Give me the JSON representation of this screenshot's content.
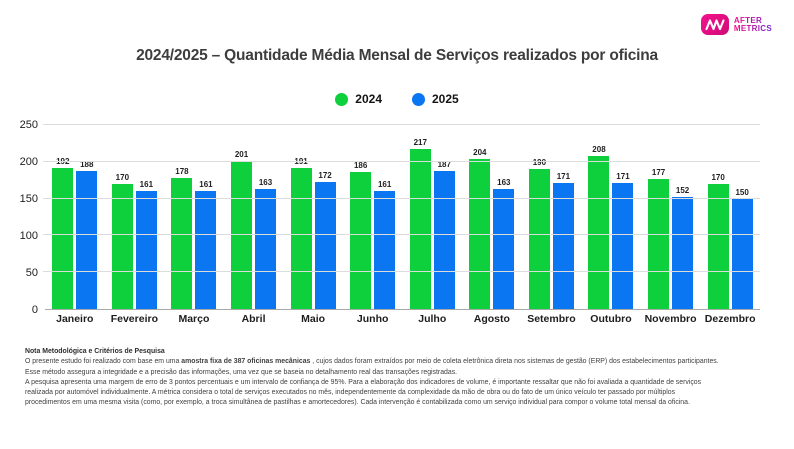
{
  "header": {
    "logo": {
      "brand_line1": "AFTER",
      "brand_line2": "METRICS"
    },
    "title": "2024/2025 – Quantidade Média Mensal de Serviços realizados por oficina"
  },
  "chart_data": {
    "type": "bar",
    "title": "2024/2025 – Quantidade Média Mensal de Serviços realizados por oficina",
    "categories": [
      "Janeiro",
      "Fevereiro",
      "Março",
      "Abril",
      "Maio",
      "Junho",
      "Julho",
      "Agosto",
      "Setembro",
      "Outubro",
      "Novembro",
      "Dezembro"
    ],
    "series": [
      {
        "name": "2024",
        "color": "#0ed03c",
        "values": [
          192,
          170,
          178,
          201,
          191,
          186,
          217,
          204,
          190,
          208,
          177,
          170
        ]
      },
      {
        "name": "2025",
        "color": "#0b76f2",
        "values": [
          188,
          161,
          161,
          163,
          172,
          161,
          187,
          163,
          171,
          171,
          152,
          150
        ]
      }
    ],
    "xlabel": "",
    "ylabel": "",
    "ylim": [
      0,
      250
    ],
    "yticks": [
      0,
      50,
      100,
      150,
      200,
      250
    ],
    "grid": true,
    "legend_position": "top",
    "bar_value_labels": true
  },
  "footnote": {
    "heading": "Nota Metodológica e Critérios de Pesquisa",
    "line1_prefix": "O presente estudo foi realizado com base em uma ",
    "line1_bold": "amostra fixa de 387 oficinas mecânicas",
    "line1_suffix": " , cujos dados foram extraídos por meio de coleta eletrônica direta nos sistemas de gestão (ERP) dos estabelecimentos participantes.",
    "line2": "Esse método assegura a integridade e a precisão das informações, uma vez que se baseia no detalhamento real das transações registradas.",
    "line3": "A pesquisa apresenta uma margem de erro de 3 pontos percentuais e um intervalo de confiança de 95%. Para a elaboração dos indicadores de volume, é importante ressaltar que não foi avaliada a quantidade de serviços",
    "line4": "realizada por automóvel individualmente. A métrica considera o total de serviços executados no mês, independentemente da complexidade da mão de obra ou do fato de um único veículo ter passado por múltiplos",
    "line5": "procedimentos em uma mesma visita (como, por exemplo, a troca simultânea de pastilhas e amortecedores). Cada intervenção é contabilizada como um serviço individual para compor o volume total mensal da oficina."
  }
}
